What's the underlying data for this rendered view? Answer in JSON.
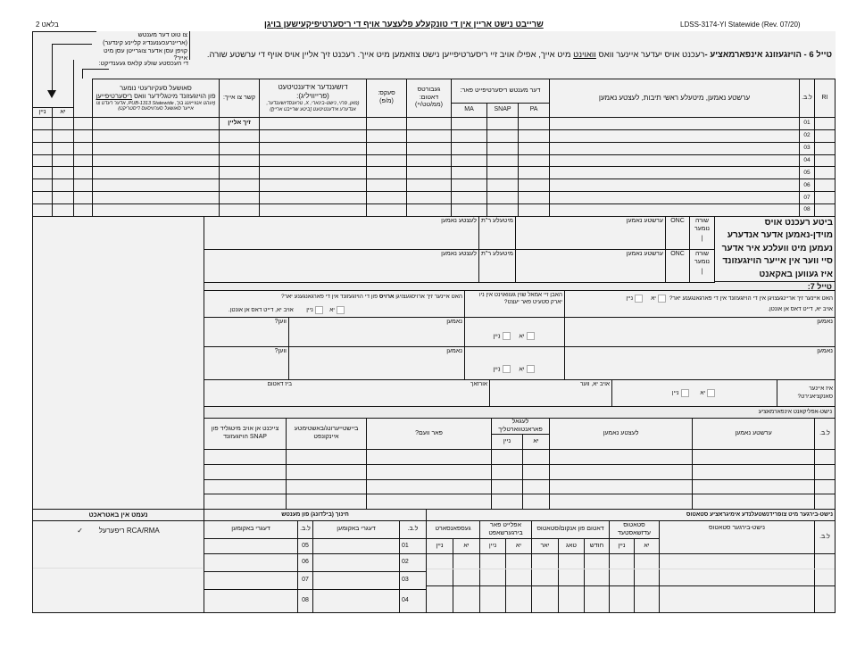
{
  "header": {
    "page": "בלאט 2",
    "title": "שרייבט נישט אריין אין די טונקעלע פלעצער אויף די ריסערטיפיקעישען בויגן",
    "form_id": "LDSS-3174-YI Statewide (Rev. 07/20)"
  },
  "section6": {
    "title_bold": "טייל 6 - הויזגעזונג אינפארמאציע -",
    "text_a": "רעכנט אויס יעדער איינער וואס ",
    "text_underlined": "וואוינט",
    "text_b": " מיט אייך, אפילו אויב זיי ריסערטיפייען נישט צוזאמען מיט אייך. רעכנט זיך אליין אויס אויף די ערשטע שורה.",
    "instruction_food": "צו טוט דער מענטש (אריינרעכענענדיג קליינע קינדער) קויפן עסן אדער צוגרייטן עסן מיט אייך?",
    "instruction_school": "די העכסטע שולע קלאס געענדיקט:",
    "columns": {
      "ri": "RI",
      "line": "ל.ב.",
      "name": "ערשטע נאמען, מיטעלע ראשי תיבות, לעצטע נאמען",
      "recert": "דער מענטש ריסערטיפייט פאר:",
      "pa": "PA",
      "snap": "SNAP",
      "ma": "MA",
      "dob": "געבורטס דאטום:",
      "dob_format": "(ממ/טט/יי)",
      "sex": "סעקס:",
      "sex_format": "(מ/פ)",
      "gender": "דזשענדער אידענטיטעט (פרייוויליג):",
      "gender_note": "(מאן, פרוי, נישט-בינארי, X, טראנסדזשענדער, אנדערע אידענטיטעט [ביטע שרייבט אריין])",
      "relation": "קשר צו אייך:",
      "ssn_a": "סאושעל סעקיורעטי נומער",
      "ssn_b": "פון הויזגעזונד מיטגלידער וואס ",
      "ssn_underlined": "ריסערטיפייען",
      "ssn_note": "(זעהט אנווייזונג בוך, PUB-1313 Statewide, אדער רעדט צו אייער סאושעל סערוויסעס דיסטריקט)",
      "yes": "יא",
      "no": "ניין"
    },
    "self_label": "זיך אליין",
    "rows": [
      "01",
      "02",
      "03",
      "04",
      "05",
      "06",
      "07",
      "08"
    ]
  },
  "other_names": {
    "label": "ביטע רעכנט אויס מוידן-נאמען אדער אנדערע נעמען מיט וועלכע איר אדער סיי ווער אין אייער הויזגעזונד איז געווען באקאנט",
    "line_number": "שורה נומער",
    "onc": "ONC",
    "first": "ערשטע נאמען",
    "middle": "מיטעלע ר\"ת",
    "last": "לעצטע נאמען"
  },
  "section7": {
    "title": "טייל 7:",
    "moved_in_q": "האט איינער זיך אריינגעצויגן אין די הויזגעזונד אין די פארגאנגענע יאר?",
    "if_yes_list": "אויב יא, דייט דאס אן אונטן.",
    "lived_ny_q": "האבן זיי אמאל שוין געוואוינט אין ניו יארק סטעיט פאר יעצט?",
    "moved_out_a": "האט איינער זיך ארויסגעצויגן ",
    "moved_out_bold": "ארויס",
    "moved_out_b": " פון די הויזגעזונד אין די פארגאנגענע יאר?",
    "yes": "יא",
    "no": "ניין",
    "name": "נאמען",
    "when": "ווען?",
    "sanction_q": "איז איינער סאנקציאנירט?",
    "if_yes_who": "אויב יא, ווער",
    "reason": "אורזאך",
    "until_date": "ביז דאטום"
  },
  "nonapplicant": {
    "title": "נישט-אפליקאנט אינפארמאציע",
    "line": "ל.ב.",
    "first": "ערשטע נאמען",
    "last": "לעצטע נאמען",
    "legal": "לעגאל פאראנטווארטליך",
    "yes": "יא",
    "no": "ניין",
    "for_whom": "פאר וועם?",
    "contribution": "ביישטייערונג/באשטימטע איינקונפט",
    "snap_member": "צייכנט אן אויב מיטגליד פון SNAP הויזגעזונד"
  },
  "considered": {
    "title": "נעמט אין באטראכט",
    "check": "✓",
    "rca": "RCA/RMA ריפערעל"
  },
  "education": {
    "title": "חינוך (בילדונג) פון מענטש",
    "line": "ל.ב.",
    "degree": "דעגרי באקומען",
    "rows_a": [
      "01",
      "02",
      "03",
      "04"
    ],
    "rows_b": [
      "05",
      "06",
      "07",
      "08"
    ]
  },
  "noncitizen": {
    "title": "נישט-בירגער מיט צופרידנשטעלנדע אימיגראציע סטאטוס",
    "line": "ל.ב.",
    "status": "נישט-בירגער סטאטוס",
    "adjusted": "סטאטוס עדזשאסטעד",
    "arrival_date": "דאטום פון אנקום/סטאטוס",
    "month": "חודש",
    "day": "טאג",
    "year": "יאר",
    "applied": "אפלייט פאר בירגערשאפט",
    "sponsored": "געספאנסארט",
    "yes": "יא",
    "no": "ניין"
  }
}
